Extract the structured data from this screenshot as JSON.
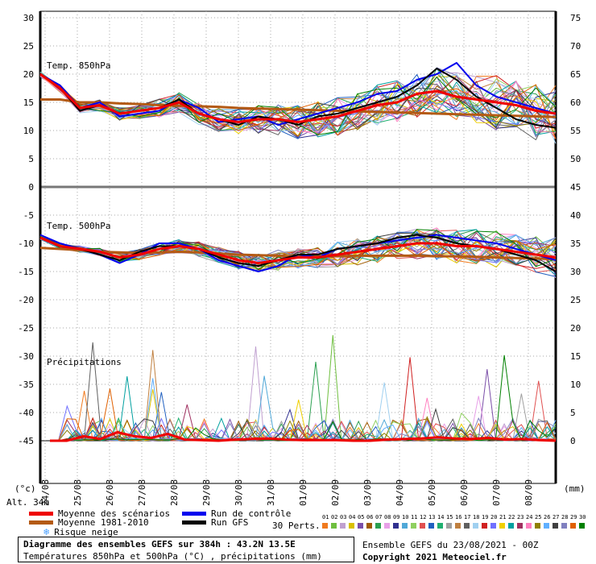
{
  "chart_data": {
    "type": "line",
    "title": "Diagramme des ensembles GEFS sur 384h : 43.2N 13.5E",
    "subtitle": "Températures 850hPa et 500hPa (°C) , précipitations (mm)",
    "x_unit_label": "(°c)",
    "y2_unit_label": "(mm)",
    "altitude_label": "Alt. 34m",
    "x_ticks": [
      "24/08",
      "25/08",
      "26/08",
      "27/08",
      "28/08",
      "29/08",
      "30/08",
      "31/08",
      "01/09",
      "02/09",
      "03/09",
      "04/09",
      "05/09",
      "06/09",
      "07/09",
      "08/09"
    ],
    "x_range_hours": [
      0,
      384
    ],
    "left_axis_ticks": [
      30,
      25,
      20,
      15,
      10,
      5,
      0,
      -5,
      -10,
      -15,
      -20,
      -25,
      -30,
      -35,
      -40,
      -45
    ],
    "right_axis_ticks": [
      75,
      70,
      65,
      60,
      55,
      50,
      45,
      40,
      35,
      30,
      25,
      20,
      15,
      10,
      5,
      0
    ],
    "panels": {
      "t850": {
        "label": "Temp. 850hPa",
        "ylim": [
          0,
          30
        ],
        "mean_scenarios": [
          20,
          17.5,
          14,
          14.5,
          13,
          13.5,
          14,
          15,
          13,
          12,
          11.5,
          12,
          12,
          11.5,
          12,
          12.5,
          13.5,
          14.5,
          15,
          16.5,
          17,
          16,
          15.5,
          15,
          14.5,
          13.5,
          13
        ],
        "mean_1981_2010": [
          15.5,
          15.5,
          15,
          15,
          14.8,
          14.7,
          14.5,
          14.4,
          14.3,
          14.2,
          14,
          13.9,
          13.8,
          13.7,
          13.6,
          13.5,
          13.4,
          13.3,
          13.2,
          13.1,
          13,
          12.9,
          12.8,
          12.7,
          12.6,
          12.5,
          12.4
        ],
        "control_run": [
          20,
          18,
          14,
          15,
          12.5,
          13,
          13.5,
          15.5,
          14,
          11.5,
          12,
          12.5,
          11,
          12,
          13,
          14,
          15,
          16.5,
          17,
          19,
          20,
          22,
          18,
          16,
          15,
          14,
          13
        ],
        "gfs_run": [
          20,
          17.5,
          13.5,
          14.5,
          13,
          13.5,
          14,
          15.5,
          13,
          12,
          11,
          12.5,
          12,
          11,
          12.5,
          13,
          14,
          15,
          16,
          18,
          21,
          19,
          16,
          14,
          12,
          11,
          10.5
        ]
      },
      "t500": {
        "label": "Temp. 500hPa",
        "ylim": [
          -20,
          0
        ],
        "mean_scenarios": [
          -9,
          -10.5,
          -11,
          -11.5,
          -12.5,
          -12,
          -11,
          -10.5,
          -11,
          -12,
          -13,
          -13.5,
          -13,
          -12.5,
          -12.5,
          -12,
          -11.5,
          -11,
          -10.5,
          -10,
          -10,
          -10.5,
          -10.5,
          -11,
          -11.5,
          -12,
          -12.5
        ],
        "mean_1981_2010": [
          -10.8,
          -11,
          -11.2,
          -11.5,
          -11.6,
          -11.7,
          -11.6,
          -11.5,
          -11.6,
          -11.8,
          -12,
          -12.1,
          -12.2,
          -12.3,
          -12.3,
          -12.3,
          -12.2,
          -12.2,
          -12.2,
          -12.2,
          -12.3,
          -12.3,
          -12.4,
          -12.5,
          -12.6,
          -12.7,
          -12.8
        ],
        "control_run": [
          -8.5,
          -10,
          -11,
          -12,
          -13.5,
          -12,
          -10,
          -10,
          -11,
          -13,
          -14,
          -15,
          -14,
          -12,
          -12.5,
          -11,
          -10.5,
          -10,
          -9.5,
          -9,
          -8.5,
          -9,
          -9.5,
          -10,
          -11,
          -12,
          -13
        ],
        "gfs_run": [
          -9,
          -10.5,
          -11,
          -12,
          -13,
          -11.5,
          -10.5,
          -10.5,
          -11,
          -12.5,
          -13.5,
          -14,
          -13,
          -12,
          -12,
          -11,
          -10.5,
          -10,
          -9,
          -8.5,
          -9,
          -10,
          -10.5,
          -11,
          -12,
          -13,
          -15
        ]
      },
      "precip": {
        "label": "Précipitations",
        "ylim_mm": [
          0,
          20
        ],
        "mean_scenarios": [
          0,
          0,
          0.8,
          0.3,
          1.5,
          0.8,
          0.5,
          1.2,
          0.2,
          0.1,
          0,
          0.2,
          0.3,
          0.4,
          0.2,
          0.1,
          0.1,
          0.1,
          0,
          0,
          0.2,
          0.3,
          0.4,
          0.6,
          0.4,
          0.3,
          0.5,
          0.2,
          0.3,
          0.1,
          0
        ],
        "peaks_mm": [
          10.5,
          20.5,
          17.5,
          12.5,
          19.5,
          8,
          14,
          12,
          10,
          14,
          8,
          14,
          10,
          6
        ]
      }
    },
    "n_perturbations": 30
  },
  "legend": {
    "mean_scenarios": "Moyenne des scénarios",
    "mean_1981_2010": "Moyenne 1981-2010",
    "snow_risk": "Risque neige",
    "control_run": "Run de contrôle",
    "gfs_run": "Run GFS",
    "perts_label": "30 Perts.",
    "pert_numbers": [
      "01",
      "02",
      "03",
      "04",
      "05",
      "06",
      "07",
      "08",
      "09",
      "10",
      "11",
      "12",
      "13",
      "14",
      "15",
      "16",
      "17",
      "18",
      "19",
      "20",
      "21",
      "22",
      "23",
      "24",
      "25",
      "26",
      "27",
      "28",
      "29",
      "30"
    ],
    "pert_colors": [
      "#f07a1e",
      "#6fbf3f",
      "#c0a0d0",
      "#d9c000",
      "#7a4ea8",
      "#a05a00",
      "#2ba050",
      "#e8a0e8",
      "#303090",
      "#50a8d8",
      "#8fd060",
      "#e05050",
      "#2060c0",
      "#20b070",
      "#a0a0a0",
      "#c08040",
      "#606060",
      "#a0d0f0",
      "#d02020",
      "#7070ff",
      "#f0d000",
      "#00a0a0",
      "#a03060",
      "#ff80c0",
      "#908000",
      "#60b0ff",
      "#404040",
      "#8080c0",
      "#e06000",
      "#008000"
    ],
    "colors": {
      "mean_scenarios": "#ee0000",
      "mean_1981_2010": "#b45a14",
      "control_run": "#0000ee",
      "gfs_run": "#000000",
      "snow": "#4aa0ff"
    }
  },
  "footer": {
    "run_info": "Ensemble GEFS du 23/08/2021 - 00Z",
    "copyright": "Copyright 2021 Meteociel.fr"
  }
}
